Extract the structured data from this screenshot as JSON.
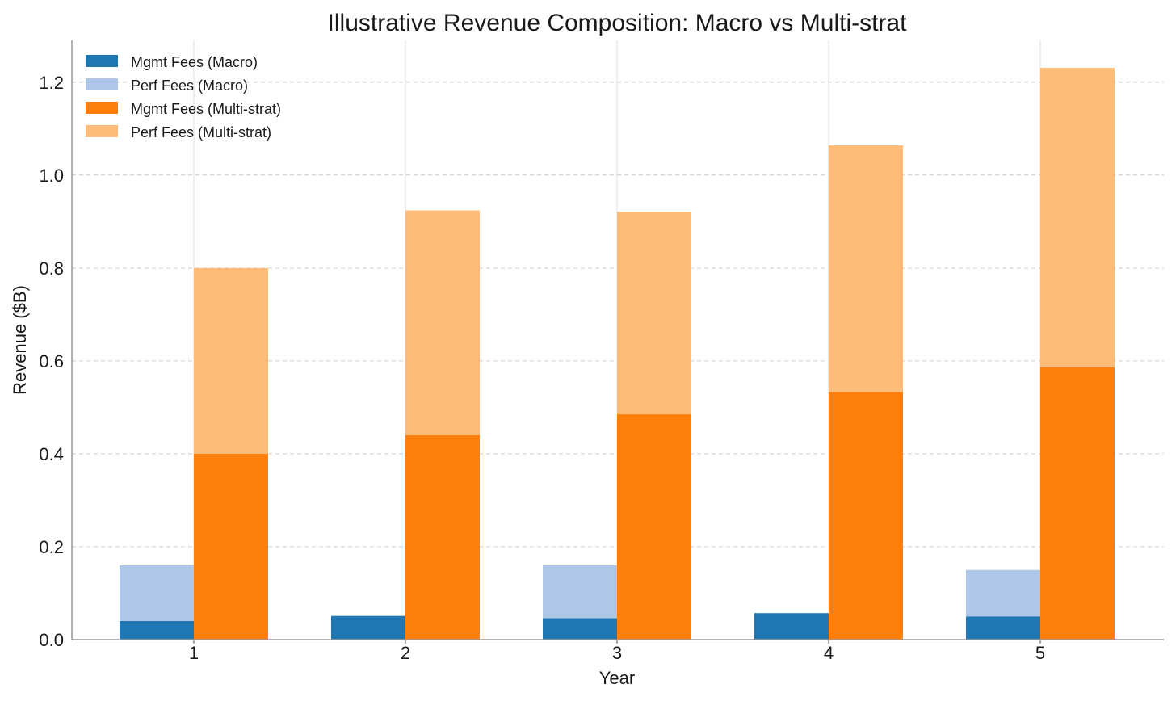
{
  "chart_data": {
    "type": "bar",
    "title": "Illustrative Revenue Composition: Macro vs Multi-strat",
    "xlabel": "Year",
    "ylabel": "Revenue ($B)",
    "categories": [
      "1",
      "2",
      "3",
      "4",
      "5"
    ],
    "ylim": [
      0,
      1.29
    ],
    "yticks": [
      "0.0",
      "0.2",
      "0.4",
      "0.6",
      "0.8",
      "1.0",
      "1.2"
    ],
    "grid": true,
    "legend_position": "top-left",
    "groups": [
      {
        "stack": "Macro",
        "series": [
          {
            "name": "Mgmt Fees (Macro)",
            "color": "#1f77b4",
            "values": [
              0.04,
              0.051,
              0.046,
              0.057,
              0.05
            ]
          },
          {
            "name": "Perf Fees (Macro)",
            "color": "#aec7e8",
            "values": [
              0.12,
              0.0,
              0.114,
              0.0,
              0.1
            ]
          }
        ]
      },
      {
        "stack": "Multi-strat",
        "series": [
          {
            "name": "Mgmt Fees (Multi-strat)",
            "color": "#ff7f0e",
            "values": [
              0.4,
              0.44,
              0.485,
              0.533,
              0.586
            ]
          },
          {
            "name": "Perf Fees (Multi-strat)",
            "color": "#ffbb78",
            "values": [
              0.4,
              0.484,
              0.436,
              0.531,
              0.645
            ]
          }
        ]
      }
    ]
  }
}
